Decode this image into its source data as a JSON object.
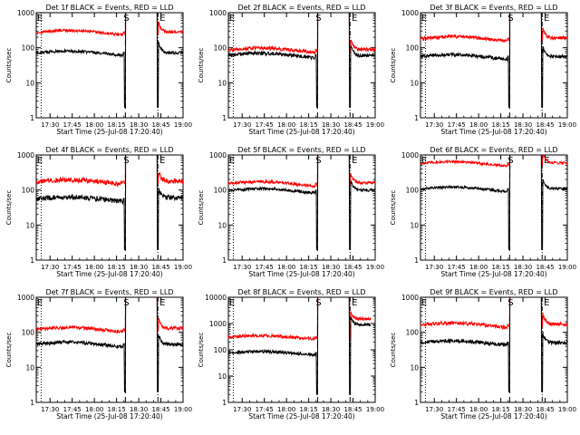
{
  "chart_data": {
    "type": "line",
    "ylabel": "Counts/sec",
    "xlabel": "Start Time (25-Jul-08 17:20:40)",
    "x_tick_labels": [
      "17:30",
      "17:45",
      "18:00",
      "18:15",
      "18:30",
      "18:45",
      "19:00"
    ],
    "x_tick_minutes": [
      30,
      45,
      60,
      75,
      90,
      105,
      120
    ],
    "x_range_minutes": [
      20.67,
      120
    ],
    "yscale": "log",
    "marker_S": "S",
    "marker_E": "E",
    "markers": {
      "start_minute": 24,
      "s_minute": 81,
      "e_minute": 103
    },
    "series_colors": {
      "events": "#000000",
      "lld": "#ff0000"
    },
    "panels": [
      {
        "title": "Det 1f BLACK = Events, RED = LLD",
        "ylim": [
          1,
          1000
        ],
        "y_tick_labels": [
          "1",
          "10",
          "100",
          "1000"
        ],
        "y_tick_values": [
          1,
          10,
          100,
          1000
        ],
        "lld_level": 270,
        "events_level": 70,
        "lld_after": 280,
        "events_after": 72,
        "noise": 0.04
      },
      {
        "title": "Det 2f BLACK = Events, RED = LLD",
        "ylim": [
          1,
          1000
        ],
        "y_tick_labels": [
          "1",
          "10",
          "100",
          "1000"
        ],
        "y_tick_values": [
          1,
          10,
          100,
          1000
        ],
        "lld_level": 85,
        "events_level": 60,
        "lld_after": 90,
        "events_after": 60,
        "noise": 0.05
      },
      {
        "title": "Det 3f BLACK = Events, RED = LLD",
        "ylim": [
          1,
          1000
        ],
        "y_tick_labels": [
          "1",
          "10",
          "100",
          "1000"
        ],
        "y_tick_values": [
          1,
          10,
          100,
          1000
        ],
        "lld_level": 180,
        "events_level": 55,
        "lld_after": 190,
        "events_after": 55,
        "noise": 0.05
      },
      {
        "title": "Det 4f BLACK = Events, RED = LLD",
        "ylim": [
          1,
          1000
        ],
        "y_tick_labels": [
          "1",
          "10",
          "100",
          "1000"
        ],
        "y_tick_values": [
          1,
          10,
          100,
          1000
        ],
        "lld_level": 170,
        "events_level": 55,
        "lld_after": 180,
        "events_after": 60,
        "noise": 0.07
      },
      {
        "title": "Det 5f BLACK = Events, RED = LLD",
        "ylim": [
          1,
          1000
        ],
        "y_tick_labels": [
          "1",
          "10",
          "100",
          "1000"
        ],
        "y_tick_values": [
          1,
          10,
          100,
          1000
        ],
        "lld_level": 150,
        "events_level": 95,
        "lld_after": 160,
        "events_after": 100,
        "noise": 0.04
      },
      {
        "title": "Det 6f BLACK = Events, RED = LLD",
        "ylim": [
          1,
          1000
        ],
        "y_tick_labels": [
          "1",
          "10",
          "100",
          "1000"
        ],
        "y_tick_values": [
          1,
          10,
          100,
          1000
        ],
        "lld_level": 560,
        "events_level": 105,
        "lld_after": 600,
        "events_after": 110,
        "noise": 0.035
      },
      {
        "title": "Det 7f BLACK = Events, RED = LLD",
        "ylim": [
          1,
          1000
        ],
        "y_tick_labels": [
          "1",
          "10",
          "100",
          "1000"
        ],
        "y_tick_values": [
          1,
          10,
          100,
          1000
        ],
        "lld_level": 120,
        "events_level": 45,
        "lld_after": 130,
        "events_after": 45,
        "noise": 0.05
      },
      {
        "title": "Det 8f BLACK = Events, RED = LLD",
        "ylim": [
          1,
          10000
        ],
        "y_tick_labels": [
          "1",
          "10",
          "100",
          "1000",
          "10000"
        ],
        "y_tick_values": [
          1,
          10,
          100,
          1000,
          10000
        ],
        "lld_level": 300,
        "events_level": 75,
        "lld_after": 1500,
        "events_after": 900,
        "noise": 0.06
      },
      {
        "title": "Det 9f BLACK = Events, RED = LLD",
        "ylim": [
          1,
          1000
        ],
        "y_tick_labels": [
          "1",
          "10",
          "100",
          "1000"
        ],
        "y_tick_values": [
          1,
          10,
          100,
          1000
        ],
        "lld_level": 160,
        "events_level": 50,
        "lld_after": 170,
        "events_after": 50,
        "noise": 0.05
      }
    ]
  }
}
